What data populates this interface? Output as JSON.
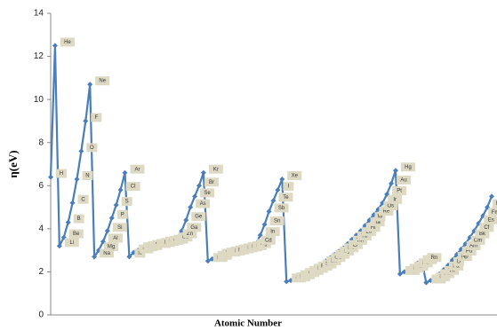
{
  "chart_data": {
    "type": "line",
    "xlabel": "Atomic Number",
    "ylabel": "η(eV)",
    "categories": [
      "H",
      "He",
      "Li",
      "Be",
      "B",
      "C",
      "N",
      "O",
      "F",
      "Ne",
      "Na",
      "Mg",
      "Al",
      "Si",
      "P",
      "S",
      "Cl",
      "Ar",
      "K",
      "Ca",
      "Sc",
      "Ti",
      "V",
      "Cr",
      "Mn",
      "Fe",
      "Co",
      "Ni",
      "Cu",
      "Zn",
      "Ga",
      "Ge",
      "As",
      "Se",
      "Br",
      "Kr",
      "Rb",
      "Sr",
      "Y",
      "Zr",
      "Nb",
      "Mo",
      "Tc",
      "Ru",
      "Rh",
      "Pd",
      "Ag",
      "Cd",
      "In",
      "Sn",
      "Sb",
      "Te",
      "I",
      "Xe",
      "Cs",
      "Ba",
      "La",
      "Ce",
      "Pr",
      "Nd",
      "Pm",
      "Sm",
      "Eu",
      "Gd",
      "Tb",
      "Dy",
      "Ho",
      "Er",
      "Tm",
      "Yb",
      "Lu",
      "Hf",
      "Ta",
      "W",
      "Re",
      "Os",
      "Ir",
      "Pt",
      "Au",
      "Hg",
      "Tl",
      "Pb",
      "Bi",
      "Po",
      "At",
      "Rn",
      "Fr",
      "Ra",
      "Ac",
      "Th",
      "Pa",
      "U",
      "Np",
      "Pu",
      "Am",
      "Cm",
      "Bk",
      "Cf",
      "Es",
      "Fm",
      "Md",
      "No"
    ],
    "values": [
      6.4,
      12.5,
      3.2,
      3.6,
      4.3,
      5.2,
      6.3,
      7.6,
      9.0,
      10.7,
      2.7,
      3.0,
      3.4,
      3.9,
      4.5,
      5.1,
      5.8,
      6.6,
      2.7,
      2.9,
      3.0,
      3.05,
      3.1,
      3.15,
      3.2,
      3.25,
      3.3,
      3.35,
      3.45,
      3.6,
      3.9,
      4.4,
      5.0,
      5.5,
      6.0,
      6.6,
      2.5,
      2.6,
      2.7,
      2.75,
      2.8,
      2.85,
      2.9,
      2.95,
      3.0,
      3.05,
      3.15,
      3.3,
      3.7,
      4.2,
      4.8,
      5.3,
      5.8,
      6.3,
      1.55,
      1.6,
      1.7,
      1.8,
      1.9,
      2.0,
      2.1,
      2.2,
      2.35,
      2.5,
      2.65,
      2.8,
      2.95,
      3.1,
      3.3,
      3.5,
      3.7,
      3.9,
      4.15,
      4.4,
      4.65,
      4.9,
      5.2,
      5.6,
      6.1,
      6.7,
      1.9,
      2.0,
      2.1,
      2.25,
      2.4,
      2.5,
      1.5,
      1.6,
      1.75,
      1.9,
      2.1,
      2.3,
      2.55,
      2.8,
      3.05,
      3.3,
      3.6,
      3.9,
      4.25,
      4.6,
      5.0,
      5.5
    ],
    "color": "#4a7ebb",
    "ylim": [
      0,
      14
    ],
    "yticks": [
      0,
      2,
      4,
      6,
      8,
      10,
      12,
      14
    ],
    "grid": false
  }
}
